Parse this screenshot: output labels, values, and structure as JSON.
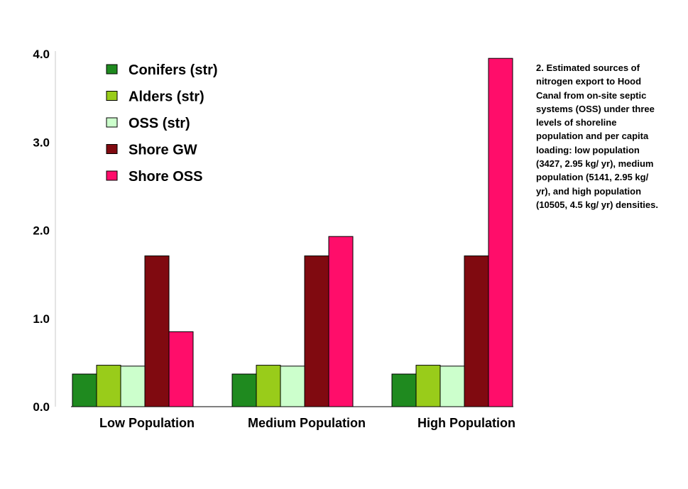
{
  "chart_data": {
    "type": "bar",
    "categories": [
      "Low Population",
      "Medium Population",
      "High Population"
    ],
    "series": [
      {
        "name": "Conifers (str)",
        "color": "#1f8a1f",
        "values": [
          0.37,
          0.37,
          0.37
        ]
      },
      {
        "name": "Alders (str)",
        "color": "#99cc1a",
        "values": [
          0.47,
          0.47,
          0.47
        ]
      },
      {
        "name": "OSS (str)",
        "color": "#ccffcc",
        "values": [
          0.46,
          0.46,
          0.46
        ]
      },
      {
        "name": "Shore GW",
        "color": "#800a10",
        "values": [
          1.71,
          1.71,
          1.71
        ]
      },
      {
        "name": "Shore OSS",
        "color": "#ff0d6a",
        "values": [
          0.85,
          1.93,
          3.95
        ]
      }
    ],
    "yticks": [
      "0.0",
      "1.0",
      "2.0",
      "3.0",
      "4.0"
    ],
    "ylim": [
      0,
      4
    ],
    "xlabel": "",
    "ylabel": "",
    "legend": "top-left",
    "grid": false
  },
  "caption": "2. Estimated sources of nitrogen export to Hood Canal from on-site septic systems (OSS) under three levels of shoreline population and per capita loading: low population (3427, 2.95 kg/ yr), medium population (5141, 2.95 kg/ yr), and high population (10505, 4.5 kg/ yr) densities."
}
